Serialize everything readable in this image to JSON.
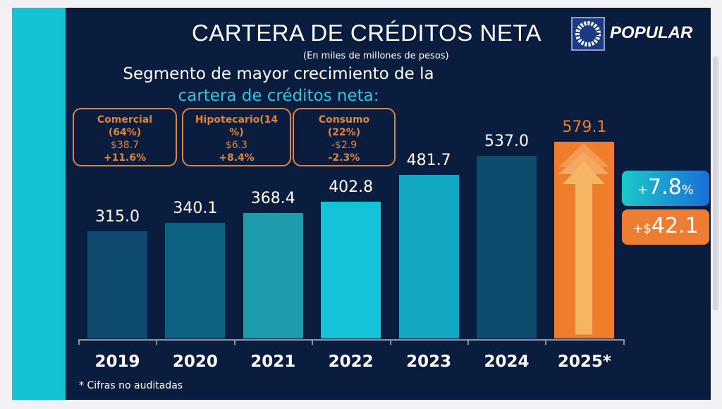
{
  "title": "CARTERA DE CRÉDITOS NETA",
  "units": "(En miles de millones de pesos)",
  "subtitle_line1": "Segmento de mayor crecimiento de la",
  "subtitle_line2": "cartera de créditos neta:",
  "brand": "POPULAR",
  "segments": [
    {
      "name": "Comercial",
      "share": "(64%)",
      "amount": "$38.7",
      "growth": "+11.6%"
    },
    {
      "name": "Hipotecario(14",
      "share": "%)",
      "amount": "$6.3",
      "growth": "+8.4%"
    },
    {
      "name": "Consumo",
      "share": "(22%)",
      "amount": "-$2.9",
      "growth": "-2.3%"
    }
  ],
  "badges": {
    "pct_prefix": "+",
    "pct_value": "7.8",
    "pct_suffix": "%",
    "amt_prefix": "+$",
    "amt_value": "42.1"
  },
  "footnote": "* Cifras no auditadas",
  "colors": {
    "background": "#0b1d3e",
    "accent_strip": "#12c3d6",
    "highlight": "#ef7d2c"
  },
  "chart_data": {
    "type": "bar",
    "categories": [
      "2019",
      "2020",
      "2021",
      "2022",
      "2023",
      "2024",
      "2025*"
    ],
    "values": [
      315.0,
      340.1,
      368.4,
      402.8,
      481.7,
      537.0,
      579.1
    ],
    "labels": [
      "315.0",
      "340.1",
      "368.4",
      "402.8",
      "481.7",
      "537.0",
      "579.1"
    ],
    "colors": [
      "#0d4a6b",
      "#0c6280",
      "#1f9cab",
      "#13c4d8",
      "#12a8c4",
      "#0d4c6d",
      "#ef7d2c"
    ],
    "ylim": [
      0,
      600
    ],
    "grid": false
  }
}
